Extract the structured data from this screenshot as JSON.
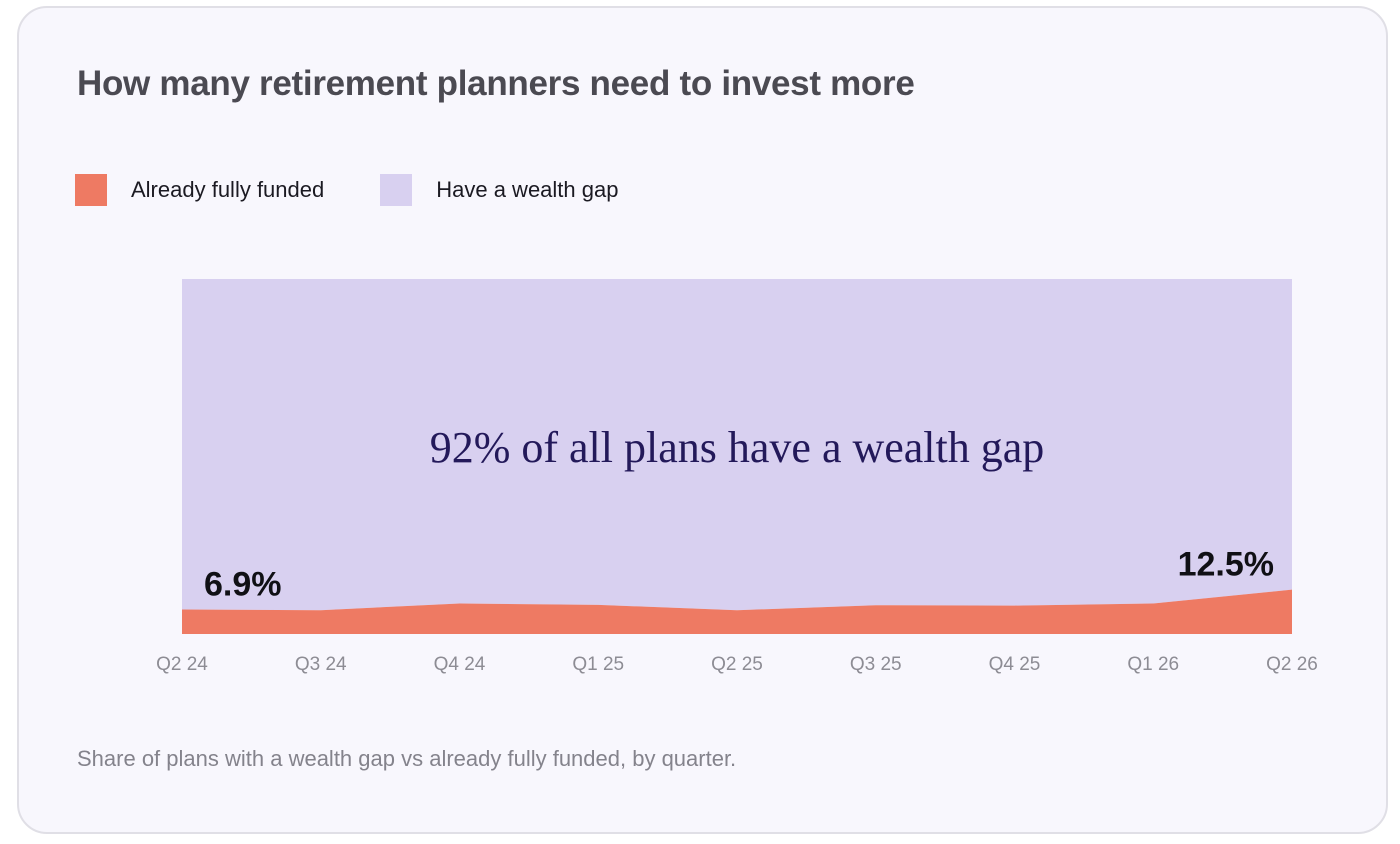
{
  "title": "How many retirement planners need to invest more",
  "caption": "Share of plans with a wealth gap vs already fully funded, by quarter.",
  "legend": {
    "position": "top-left",
    "items": [
      {
        "label": "Already fully funded",
        "color": "#ee7a63"
      },
      {
        "label": "Have a wealth gap",
        "color": "#d8d0f0"
      }
    ]
  },
  "chart_data": {
    "type": "area",
    "stacked": true,
    "normalized": true,
    "categories": [
      "Q2 24",
      "Q3 24",
      "Q4 24",
      "Q1 25",
      "Q2 25",
      "Q3 25",
      "Q4 25",
      "Q1 26",
      "Q2 26"
    ],
    "series": [
      {
        "name": "Already fully funded",
        "color": "#ee7a63",
        "values": [
          6.9,
          6.7,
          8.6,
          8.2,
          6.7,
          8.1,
          8.0,
          8.6,
          12.5
        ]
      },
      {
        "name": "Have a wealth gap",
        "color": "#d8d0f0",
        "values": [
          93.1,
          93.3,
          91.4,
          91.8,
          93.3,
          91.9,
          92.0,
          91.4,
          87.5
        ]
      }
    ],
    "ylim": [
      0,
      100
    ],
    "grid": false,
    "xlabel": "",
    "ylabel": "",
    "annotations": {
      "center_text": "92% of all plans have a wealth gap",
      "start_label": "6.9%",
      "end_label": "12.5%"
    }
  }
}
